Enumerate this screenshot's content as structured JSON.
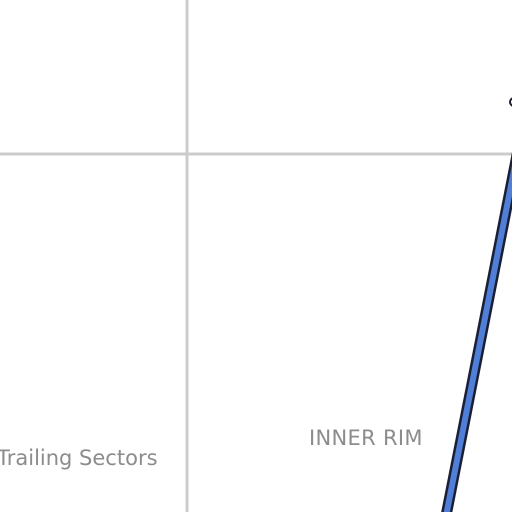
{
  "map": {
    "labels": {
      "trailing_sectors": "Trailing Sectors",
      "inner_rim": "INNER RIM"
    },
    "colors": {
      "background": "#ffffff",
      "grid_line": "#cccccc",
      "route_fill": "#4f7fd6",
      "route_outline": "#1a1f36",
      "label_text": "#8c8c8c"
    }
  }
}
